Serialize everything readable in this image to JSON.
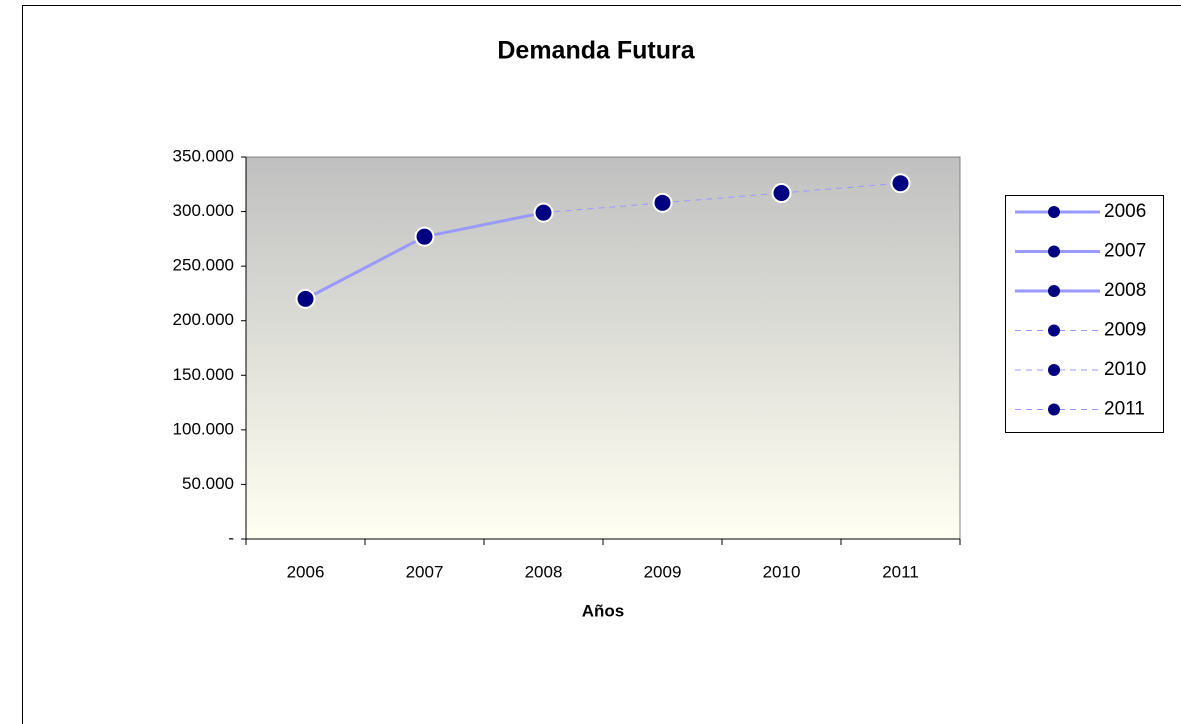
{
  "chart_data": {
    "type": "line",
    "title": "Demanda Futura",
    "x_label": "Años",
    "categories": [
      "2006",
      "2007",
      "2008",
      "2009",
      "2010",
      "2011"
    ],
    "values": [
      220000,
      277000,
      299000,
      308000,
      317000,
      326000
    ],
    "line_styles": [
      "solid",
      "solid",
      "solid",
      "dashed",
      "dashed",
      "dashed"
    ],
    "line_color": "#9999ff",
    "marker_color": "#000080",
    "ylim": [
      0,
      350000
    ],
    "yticks": [
      {
        "value": 0,
        "label": "-"
      },
      {
        "value": 50000,
        "label": "50.000"
      },
      {
        "value": 100000,
        "label": "100.000"
      },
      {
        "value": 150000,
        "label": "150.000"
      },
      {
        "value": 200000,
        "label": "200.000"
      },
      {
        "value": 250000,
        "label": "250.000"
      },
      {
        "value": 300000,
        "label": "300.000"
      },
      {
        "value": 350000,
        "label": "350.000"
      }
    ],
    "legend": "right",
    "grid": false
  }
}
